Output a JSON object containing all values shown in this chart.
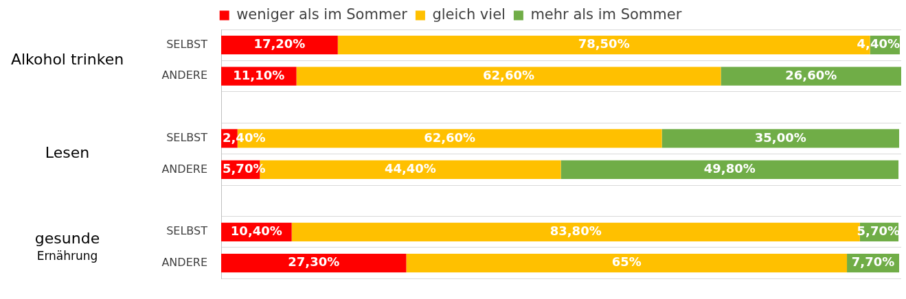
{
  "chart_data": {
    "type": "bar",
    "orientation": "horizontal",
    "stacked": true,
    "categories": [
      "SELBST",
      "ANDERE",
      null,
      "SELBST",
      "ANDERE",
      null,
      "SELBST",
      "ANDERE"
    ],
    "series": [
      {
        "name": "weniger als im Sommer",
        "color": "#ff0000",
        "values": [
          17.2,
          11.1,
          null,
          2.4,
          5.7,
          null,
          10.4,
          27.3
        ],
        "value_labels": [
          "17,20%",
          "11,10%",
          null,
          "2,40%",
          "5,70%",
          null,
          "10,40%",
          "27,30%"
        ]
      },
      {
        "name": "gleich viel",
        "color": "#ffc000",
        "values": [
          78.5,
          62.6,
          null,
          62.6,
          44.4,
          null,
          83.8,
          65
        ],
        "value_labels": [
          "78,50%",
          "62,60%",
          null,
          "62,60%",
          "44,40%",
          null,
          "83,80%",
          "65%"
        ]
      },
      {
        "name": "mehr als im Sommer",
        "color": "#70ad47",
        "values": [
          4.4,
          26.6,
          null,
          35,
          49.8,
          null,
          5.7,
          7.7
        ],
        "value_labels": [
          "4,40%",
          "26,60%",
          null,
          "35,00%",
          "49,80%",
          null,
          "5,70%",
          "7,70%"
        ]
      }
    ],
    "annotations": [
      "Alkohol trinken",
      "Lesen",
      "gesunde Ernährung"
    ],
    "xlim": [
      0,
      100.3
    ],
    "tick_labels": "y",
    "grid": "y",
    "legend": "top"
  }
}
